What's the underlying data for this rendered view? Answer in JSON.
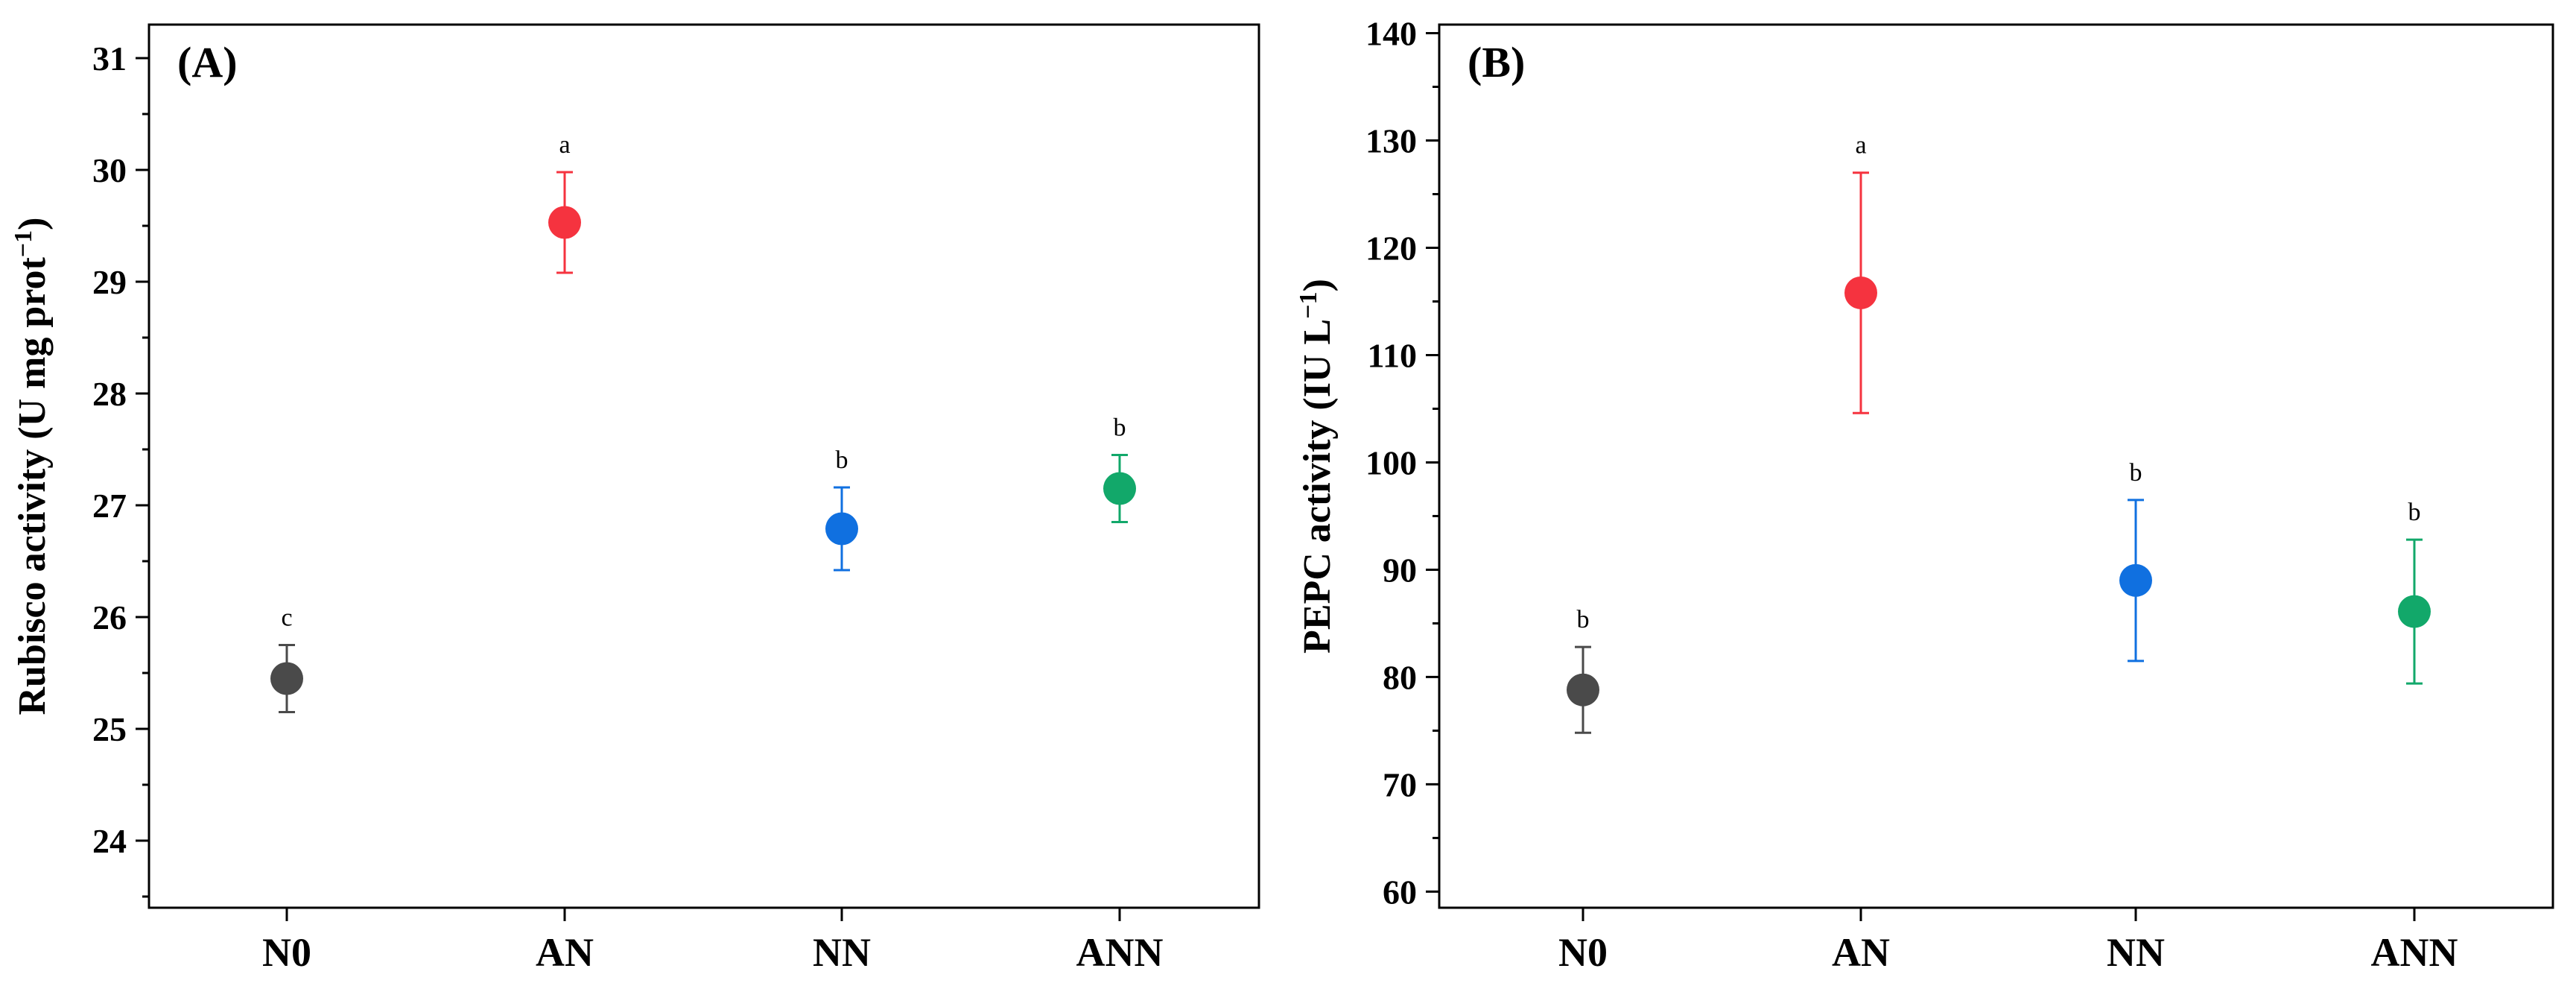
{
  "chart_data": [
    {
      "type": "scatter",
      "panel_label": "(A)",
      "ylabel": "Rubisco activity (U mg prot",
      "ylabel_superscript": "−1",
      "ylabel_close": ")",
      "categories": [
        "N0",
        "AN",
        "NN",
        "ANN"
      ],
      "values": [
        25.45,
        29.53,
        26.79,
        27.15
      ],
      "errors": [
        0.3,
        0.45,
        0.37,
        0.3
      ],
      "significance": [
        "c",
        "a",
        "b",
        "b"
      ],
      "colors": [
        "#4a4a4a",
        "#f5333f",
        "#1070e0",
        "#12a86a"
      ],
      "ylim": [
        23.4,
        31.3
      ],
      "yticks": [
        24,
        25,
        26,
        27,
        28,
        29,
        30,
        31
      ],
      "minor_tick_step": 0.5,
      "grid": false,
      "legend": false
    },
    {
      "type": "scatter",
      "panel_label": "(B)",
      "ylabel": "PEPC activity (IU L",
      "ylabel_superscript": "−1",
      "ylabel_close": ")",
      "categories": [
        "N0",
        "AN",
        "NN",
        "ANN"
      ],
      "values": [
        78.8,
        115.8,
        89.0,
        86.1
      ],
      "errors": [
        4.0,
        11.2,
        7.5,
        6.7
      ],
      "significance": [
        "b",
        "a",
        "b",
        "b"
      ],
      "colors": [
        "#4a4a4a",
        "#f5333f",
        "#1070e0",
        "#12a86a"
      ],
      "ylim": [
        58.5,
        140.8
      ],
      "yticks": [
        60,
        70,
        80,
        90,
        100,
        110,
        120,
        130,
        140
      ],
      "minor_tick_step": 5,
      "grid": false,
      "legend": false
    }
  ]
}
